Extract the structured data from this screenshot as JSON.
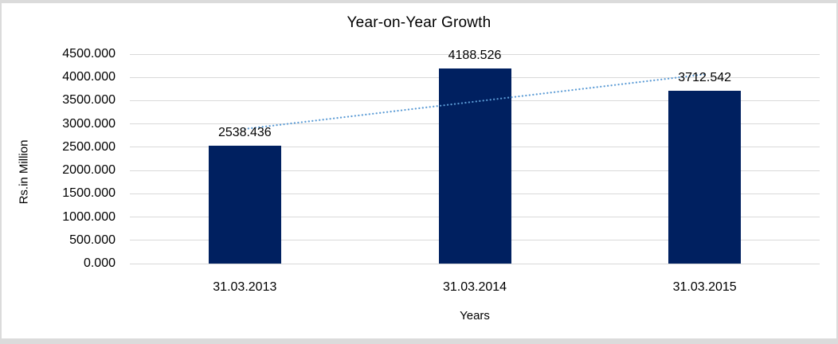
{
  "frame": {
    "background": "#ffffff",
    "border_color": "#dbdbdb"
  },
  "chart_data": {
    "type": "bar",
    "title": "Year-on-Year Growth",
    "xlabel": "Years",
    "ylabel": "Rs.in Million",
    "categories": [
      "31.03.2013",
      "31.03.2014",
      "31.03.2015"
    ],
    "values": [
      2538.436,
      4188.526,
      3712.542
    ],
    "data_labels": [
      "2538.436",
      "4188.526",
      "3712.542"
    ],
    "ylim": [
      0,
      4500
    ],
    "ytick_step": 500,
    "ytick_labels": [
      "0.000",
      "500.000",
      "1000.000",
      "1500.000",
      "2000.000",
      "2500.000",
      "3000.000",
      "3500.000",
      "4000.000",
      "4500.000"
    ],
    "grid": true,
    "legend": "none",
    "bar_color": "#002060",
    "gridline_color": "#d9d9d9",
    "text_color": "#000000",
    "trendline": {
      "type": "linear",
      "style": "dotted",
      "color": "#5b9bd5"
    }
  }
}
